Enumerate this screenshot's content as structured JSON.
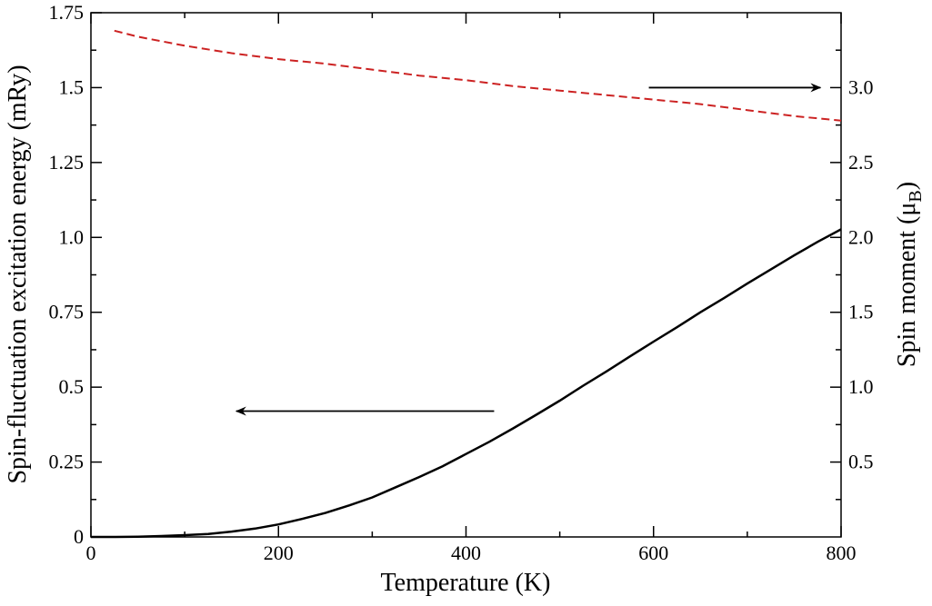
{
  "chart_data": {
    "type": "line",
    "xlabel": "Temperature (K)",
    "ylabel_left": "Spin-fluctuation excitation energy (mRy)",
    "ylabel_right": {
      "base": "Spin moment (μ",
      "sub": "B",
      "close": ")"
    },
    "xlim": [
      0,
      800
    ],
    "ylim_left": [
      0,
      1.75
    ],
    "ylim_right": [
      0,
      3.5
    ],
    "x_ticks": [
      "0",
      "200",
      "400",
      "600",
      "800"
    ],
    "y_left_ticks": [
      "0",
      "0.25",
      "0.5",
      "0.75",
      "1.0",
      "1.25",
      "1.5",
      "1.75"
    ],
    "y_right_ticks": [
      "0.5",
      "1.0",
      "1.5",
      "2.0",
      "2.5",
      "3.0"
    ],
    "grid": false,
    "series": [
      {
        "axis": "left",
        "color": "#000000",
        "style": "solid",
        "points": [
          [
            0,
            0
          ],
          [
            25,
            0
          ],
          [
            50,
            0.001
          ],
          [
            75,
            0.003
          ],
          [
            100,
            0.006
          ],
          [
            125,
            0.01
          ],
          [
            150,
            0.018
          ],
          [
            175,
            0.028
          ],
          [
            200,
            0.042
          ],
          [
            225,
            0.06
          ],
          [
            250,
            0.08
          ],
          [
            275,
            0.105
          ],
          [
            300,
            0.132
          ],
          [
            325,
            0.166
          ],
          [
            350,
            0.2
          ],
          [
            375,
            0.236
          ],
          [
            400,
            0.277
          ],
          [
            425,
            0.318
          ],
          [
            450,
            0.362
          ],
          [
            475,
            0.408
          ],
          [
            500,
            0.455
          ],
          [
            525,
            0.505
          ],
          [
            550,
            0.553
          ],
          [
            575,
            0.603
          ],
          [
            600,
            0.652
          ],
          [
            625,
            0.7
          ],
          [
            650,
            0.75
          ],
          [
            675,
            0.797
          ],
          [
            700,
            0.846
          ],
          [
            725,
            0.893
          ],
          [
            750,
            0.94
          ],
          [
            775,
            0.985
          ],
          [
            800,
            1.027
          ]
        ]
      },
      {
        "axis": "right",
        "color": "#cc2222",
        "style": "dashed",
        "points": [
          [
            25,
            3.38
          ],
          [
            50,
            3.34
          ],
          [
            100,
            3.28
          ],
          [
            150,
            3.23
          ],
          [
            200,
            3.19
          ],
          [
            250,
            3.16
          ],
          [
            300,
            3.12
          ],
          [
            350,
            3.08
          ],
          [
            400,
            3.05
          ],
          [
            450,
            3.01
          ],
          [
            500,
            2.98
          ],
          [
            550,
            2.95
          ],
          [
            600,
            2.92
          ],
          [
            650,
            2.89
          ],
          [
            700,
            2.85
          ],
          [
            750,
            2.81
          ],
          [
            800,
            2.78
          ]
        ]
      }
    ],
    "annotations": [
      {
        "type": "arrow",
        "axis": "left",
        "from": [
          430,
          0.42
        ],
        "to": [
          155,
          0.42
        ],
        "meaning": "points to left axis"
      },
      {
        "type": "arrow",
        "axis": "right",
        "from": [
          595,
          3.0
        ],
        "to": [
          778,
          3.0
        ],
        "meaning": "points to right axis"
      }
    ]
  }
}
